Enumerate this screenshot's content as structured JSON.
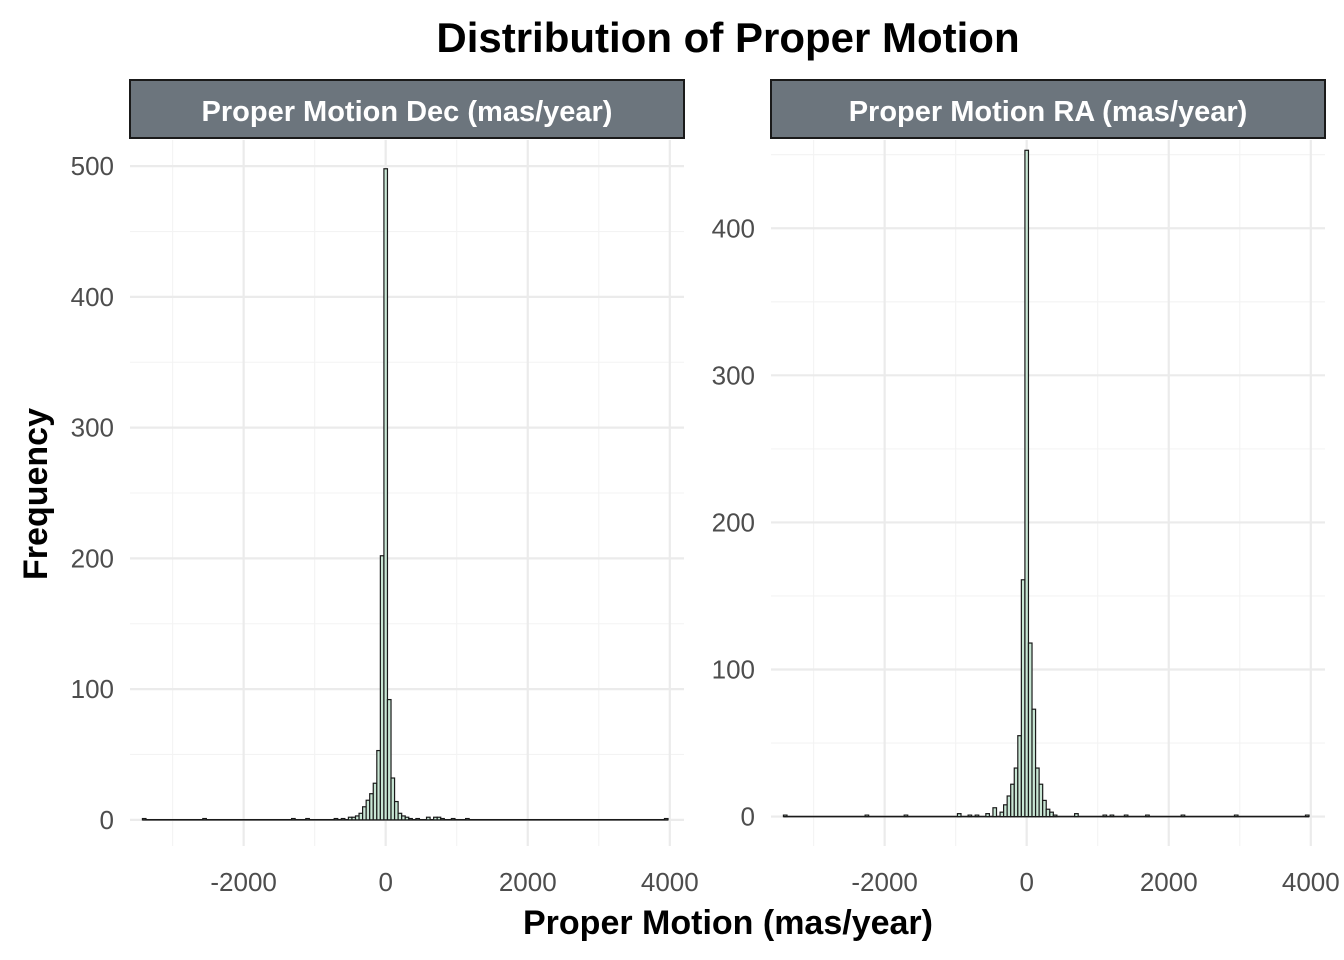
{
  "chart_data": {
    "type": "bar",
    "title": "Distribution of Proper Motion",
    "xlabel": "Proper Motion (mas/year)",
    "ylabel": "Frequency",
    "bar_fill": "#c8e6d4",
    "bar_outline": "#1a1a1a",
    "strip_fill": "#6c757d",
    "grid": true,
    "bin_width": 50,
    "xlim": [
      -3600,
      4200
    ],
    "x_ticks": [
      -2000,
      0,
      2000,
      4000
    ],
    "x_tick_labels": [
      "-2000",
      "0",
      "2000",
      "4000"
    ],
    "panels": [
      {
        "name": "Proper Motion Dec (mas/year)",
        "ylim": [
          -20,
          520
        ],
        "y_ticks": [
          0,
          100,
          200,
          300,
          400,
          500
        ],
        "y_tick_labels": [
          "0",
          "100",
          "200",
          "300",
          "400",
          "500"
        ],
        "bins": [
          {
            "x": -3400,
            "y": 1
          },
          {
            "x": -2550,
            "y": 1
          },
          {
            "x": -1300,
            "y": 1
          },
          {
            "x": -1100,
            "y": 1
          },
          {
            "x": -700,
            "y": 1
          },
          {
            "x": -600,
            "y": 1
          },
          {
            "x": -500,
            "y": 2
          },
          {
            "x": -450,
            "y": 2
          },
          {
            "x": -400,
            "y": 3
          },
          {
            "x": -350,
            "y": 5
          },
          {
            "x": -300,
            "y": 10
          },
          {
            "x": -250,
            "y": 15
          },
          {
            "x": -200,
            "y": 20
          },
          {
            "x": -150,
            "y": 28
          },
          {
            "x": -100,
            "y": 53
          },
          {
            "x": -50,
            "y": 202
          },
          {
            "x": 0,
            "y": 498
          },
          {
            "x": 50,
            "y": 92
          },
          {
            "x": 100,
            "y": 32
          },
          {
            "x": 150,
            "y": 14
          },
          {
            "x": 200,
            "y": 5
          },
          {
            "x": 250,
            "y": 3
          },
          {
            "x": 300,
            "y": 2
          },
          {
            "x": 350,
            "y": 1
          },
          {
            "x": 450,
            "y": 1
          },
          {
            "x": 600,
            "y": 2
          },
          {
            "x": 700,
            "y": 2
          },
          {
            "x": 750,
            "y": 2
          },
          {
            "x": 800,
            "y": 1
          },
          {
            "x": 950,
            "y": 1
          },
          {
            "x": 1150,
            "y": 1
          },
          {
            "x": 3950,
            "y": 1
          }
        ]
      },
      {
        "name": "Proper Motion RA (mas/year)",
        "ylim": [
          -20,
          460
        ],
        "y_ticks": [
          0,
          100,
          200,
          300,
          400
        ],
        "y_tick_labels": [
          "0",
          "100",
          "200",
          "300",
          "400"
        ],
        "bins": [
          {
            "x": -3400,
            "y": 1
          },
          {
            "x": -2250,
            "y": 1
          },
          {
            "x": -1700,
            "y": 1
          },
          {
            "x": -950,
            "y": 2
          },
          {
            "x": -800,
            "y": 1
          },
          {
            "x": -700,
            "y": 1
          },
          {
            "x": -550,
            "y": 2
          },
          {
            "x": -450,
            "y": 6
          },
          {
            "x": -350,
            "y": 3
          },
          {
            "x": -300,
            "y": 8
          },
          {
            "x": -250,
            "y": 14
          },
          {
            "x": -200,
            "y": 22
          },
          {
            "x": -150,
            "y": 33
          },
          {
            "x": -100,
            "y": 55
          },
          {
            "x": -50,
            "y": 161
          },
          {
            "x": 0,
            "y": 453
          },
          {
            "x": 50,
            "y": 118
          },
          {
            "x": 100,
            "y": 73
          },
          {
            "x": 150,
            "y": 33
          },
          {
            "x": 200,
            "y": 22
          },
          {
            "x": 250,
            "y": 11
          },
          {
            "x": 300,
            "y": 5
          },
          {
            "x": 350,
            "y": 3
          },
          {
            "x": 400,
            "y": 1
          },
          {
            "x": 700,
            "y": 2
          },
          {
            "x": 1100,
            "y": 1
          },
          {
            "x": 1200,
            "y": 1
          },
          {
            "x": 1400,
            "y": 1
          },
          {
            "x": 1700,
            "y": 1
          },
          {
            "x": 2200,
            "y": 1
          },
          {
            "x": 2950,
            "y": 1
          },
          {
            "x": 3950,
            "y": 1
          }
        ]
      }
    ]
  }
}
